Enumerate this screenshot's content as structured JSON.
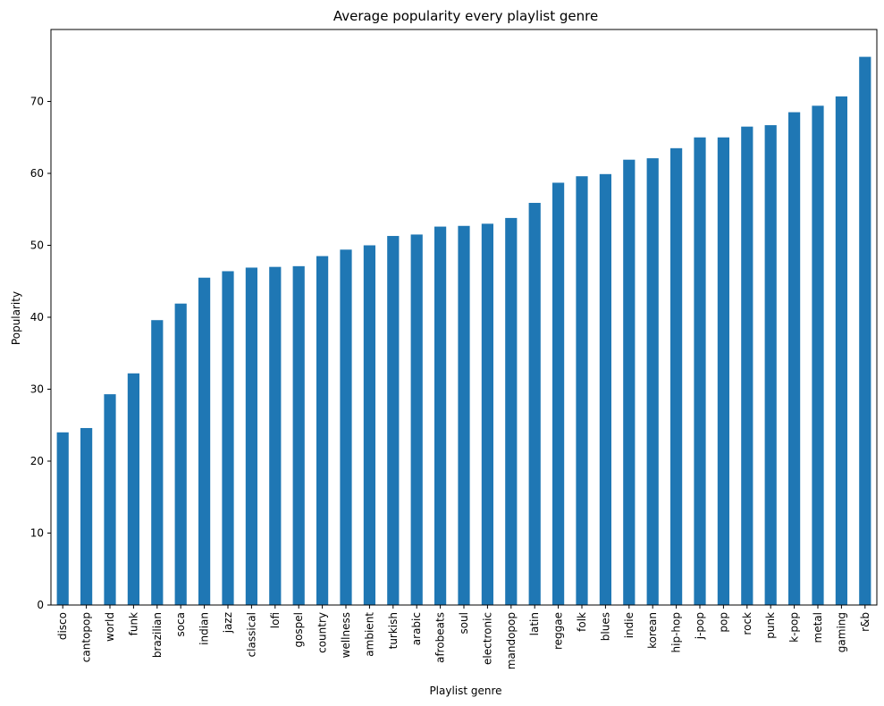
{
  "chart_data": {
    "type": "bar",
    "title": "Average popularity every playlist genre",
    "xlabel": "Playlist genre",
    "ylabel": "Popularity",
    "ylim": [
      0,
      80
    ],
    "yticks": [
      0,
      10,
      20,
      30,
      40,
      50,
      60,
      70
    ],
    "grid": false,
    "legend": "none",
    "bar_color": "#1f77b4",
    "categories": [
      "disco",
      "cantopop",
      "world",
      "funk",
      "brazilian",
      "soca",
      "indian",
      "jazz",
      "classical",
      "lofi",
      "gospel",
      "country",
      "wellness",
      "ambient",
      "turkish",
      "arabic",
      "afrobeats",
      "soul",
      "electronic",
      "mandopop",
      "latin",
      "reggae",
      "folk",
      "blues",
      "indie",
      "korean",
      "hip-hop",
      "j-pop",
      "pop",
      "rock",
      "punk",
      "k-pop",
      "metal",
      "gaming",
      "r&b"
    ],
    "values": [
      24.0,
      24.6,
      29.3,
      32.2,
      39.6,
      41.9,
      45.5,
      46.4,
      46.9,
      47.0,
      47.1,
      48.5,
      49.4,
      50.0,
      51.3,
      51.5,
      52.6,
      52.7,
      53.0,
      53.8,
      55.9,
      58.7,
      59.6,
      59.9,
      61.9,
      62.1,
      63.5,
      65.0,
      65.0,
      66.5,
      66.7,
      68.5,
      69.4,
      70.7,
      76.2
    ]
  }
}
